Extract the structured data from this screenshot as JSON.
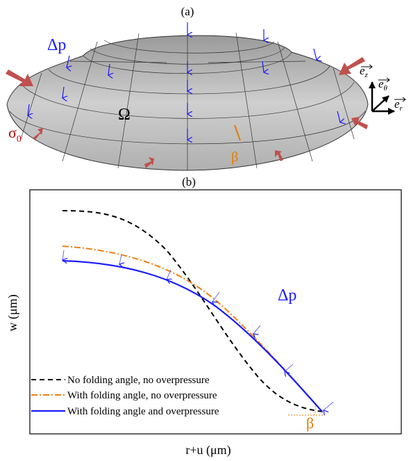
{
  "panel_a": {
    "label": "(a)",
    "pressure": "Δp",
    "domain": "Ω",
    "tension": {
      "symbol": "σ",
      "subscript": "0"
    },
    "angle": "β",
    "basis": [
      {
        "symbol": "e",
        "subscript": "z"
      },
      {
        "symbol": "e",
        "subscript": "θ"
      },
      {
        "symbol": "e",
        "subscript": "r"
      }
    ]
  },
  "panel_b": {
    "label": "(b)",
    "y_label": "w (μm)",
    "x_label": "r+u (μm)",
    "pressure": "Δp",
    "angle": "β",
    "legend": [
      "No folding angle, no overpressure",
      "With folding angle, no overpressure",
      "With folding angle and overpressure"
    ]
  }
}
